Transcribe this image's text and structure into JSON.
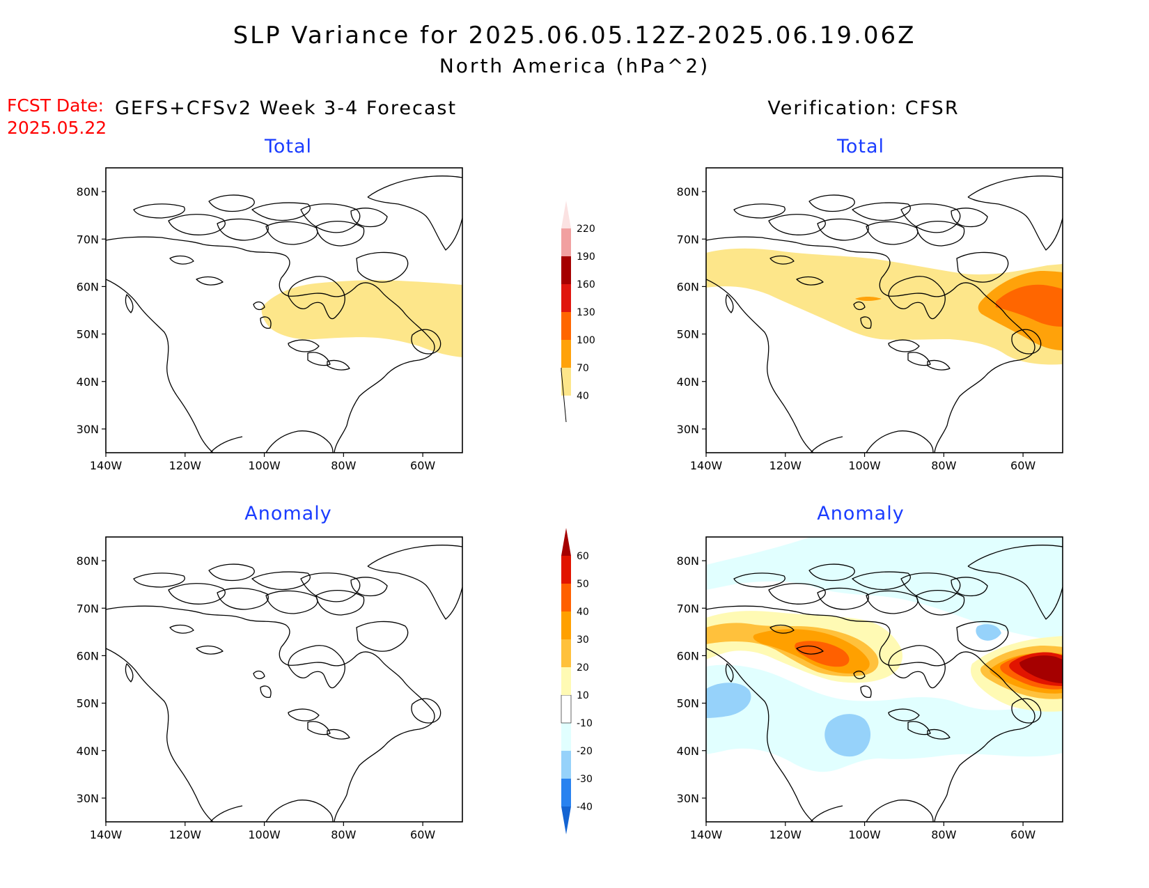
{
  "header": {
    "title": "SLP Variance for 2025.06.05.12Z-2025.06.19.06Z",
    "subtitle": "North America (hPa^2)",
    "fcst_label": "FCST Date:",
    "fcst_date": "2025.05.22",
    "left_column": "GEFS+CFSv2 Week 3-4 Forecast",
    "right_column": "Verification: CFSR"
  },
  "panels": [
    {
      "name": "forecast-total",
      "title": "Total"
    },
    {
      "name": "verification-total",
      "title": "Total"
    },
    {
      "name": "forecast-anomaly",
      "title": "Anomaly"
    },
    {
      "name": "verification-anomaly",
      "title": "Anomaly"
    }
  ],
  "axes": {
    "lat_ticks": [
      {
        "value": 80,
        "label": "80N"
      },
      {
        "value": 70,
        "label": "70N"
      },
      {
        "value": 60,
        "label": "60N"
      },
      {
        "value": 50,
        "label": "50N"
      },
      {
        "value": 40,
        "label": "40N"
      },
      {
        "value": 30,
        "label": "30N"
      }
    ],
    "lon_ticks": [
      {
        "value": -140,
        "label": "140W"
      },
      {
        "value": -120,
        "label": "120W"
      },
      {
        "value": -100,
        "label": "100W"
      },
      {
        "value": -80,
        "label": "80W"
      },
      {
        "value": -60,
        "label": "60W"
      }
    ],
    "lon_range": [
      -140,
      -50
    ],
    "lat_range": [
      25,
      85
    ]
  },
  "colorbars": {
    "total": {
      "levels": [
        "40",
        "70",
        "100",
        "130",
        "160",
        "190",
        "220"
      ],
      "colors": [
        "#fde68a",
        "#ffa20a",
        "#ff6600",
        "#e0160e",
        "#a50000",
        "#f1a0a0",
        "#fbe2e2"
      ]
    },
    "anomaly": {
      "levels": [
        "-40",
        "-30",
        "-20",
        "-10",
        "10",
        "20",
        "30",
        "40",
        "50",
        "60"
      ],
      "colors": [
        "#1464d2",
        "#2882f0",
        "#96d2fa",
        "#e1ffff",
        "#ffffff",
        "#fffab4",
        "#ffc13c",
        "#ffa000",
        "#ff6000",
        "#e11400",
        "#a50000"
      ]
    }
  }
}
